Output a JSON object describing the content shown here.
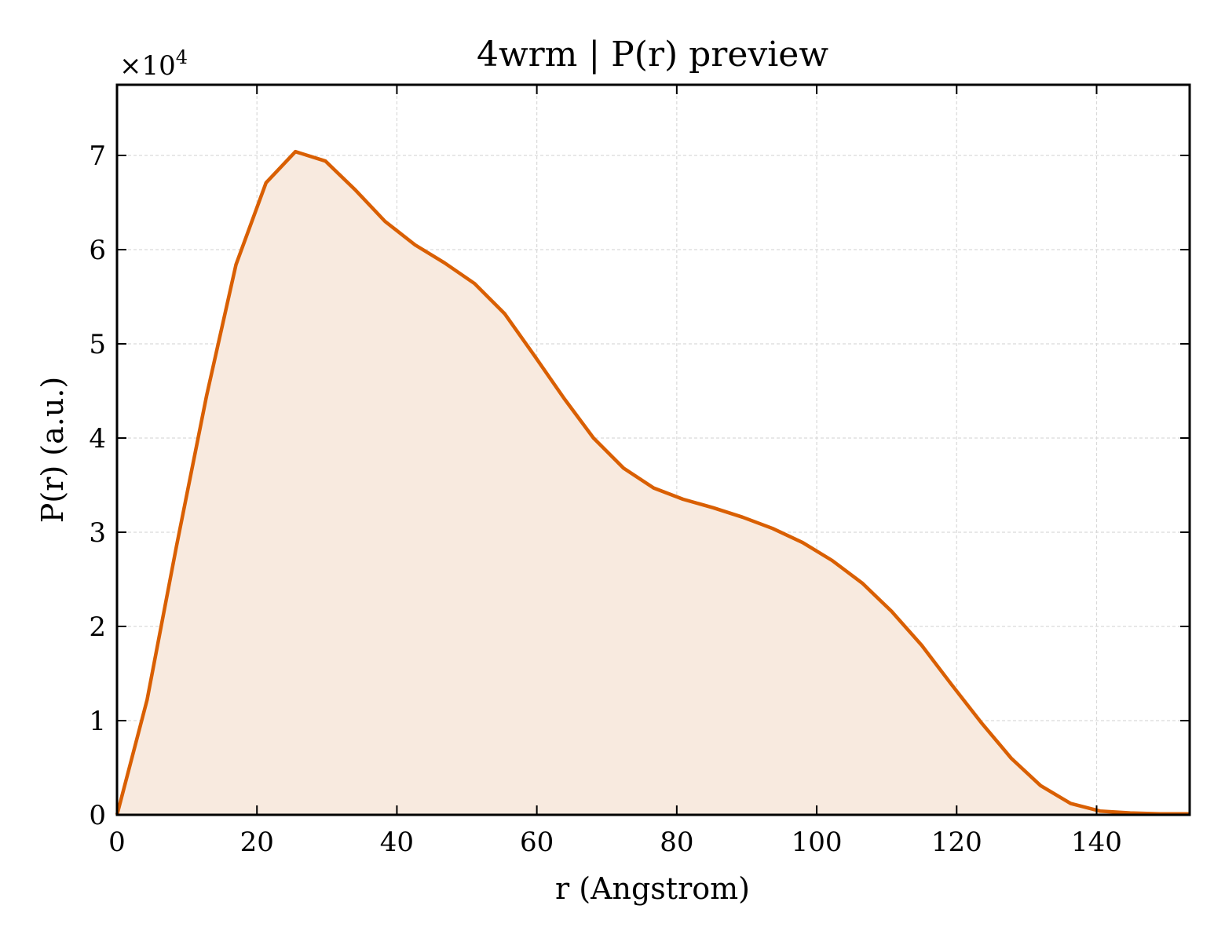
{
  "chart_data": {
    "type": "area",
    "title": "4wrm | P(r) preview",
    "xlabel": "r (Angstrom)",
    "ylabel": "P(r) (a.u.)",
    "y_multiplier_prefix": "×10",
    "y_multiplier_exponent": "4",
    "xlim": [
      0,
      153.3
    ],
    "ylim": [
      0,
      7.75
    ],
    "x_ticks": [
      "0",
      "20",
      "40",
      "60",
      "80",
      "100",
      "120",
      "140"
    ],
    "y_ticks": [
      "0",
      "1",
      "2",
      "3",
      "4",
      "5",
      "6",
      "7"
    ],
    "grid": true,
    "series": [
      {
        "x": [
          0,
          4.3,
          8.5,
          12.8,
          17.0,
          21.3,
          25.5,
          29.8,
          34.1,
          38.3,
          42.6,
          46.8,
          51.1,
          55.4,
          59.6,
          63.9,
          68.1,
          72.4,
          76.7,
          80.9,
          85.2,
          89.4,
          93.7,
          98.0,
          102.2,
          106.5,
          110.7,
          115.0,
          119.2,
          123.5,
          127.8,
          132.0,
          136.3,
          140.5,
          144.8,
          149.1,
          153.3
        ],
        "values": [
          0,
          1.22,
          2.85,
          4.45,
          5.84,
          6.71,
          7.04,
          6.94,
          6.63,
          6.3,
          6.05,
          5.86,
          5.64,
          5.32,
          4.88,
          4.42,
          4.0,
          3.68,
          3.47,
          3.35,
          3.26,
          3.16,
          3.04,
          2.89,
          2.7,
          2.46,
          2.16,
          1.8,
          1.39,
          0.98,
          0.6,
          0.31,
          0.12,
          0.04,
          0.02,
          0.01,
          0.01
        ]
      }
    ],
    "colors": {
      "line": "#d95f02",
      "fill": "#f8eadf",
      "grid": "#d9d9d9",
      "axes": "#000000"
    }
  }
}
